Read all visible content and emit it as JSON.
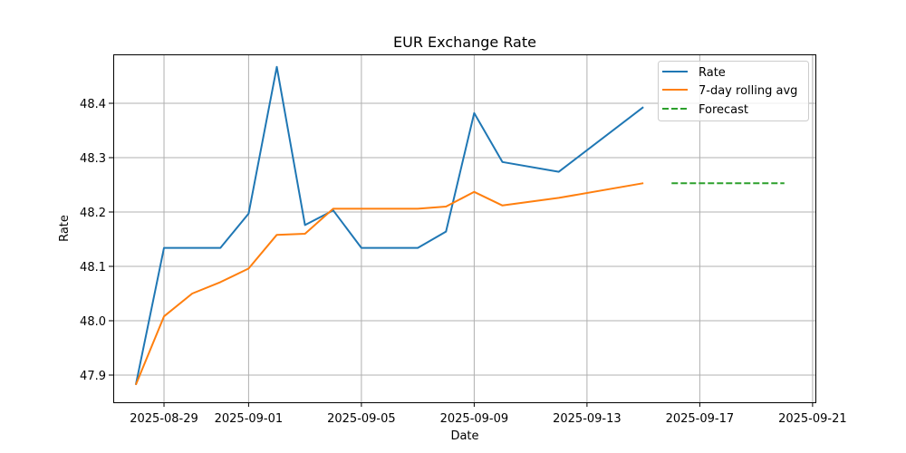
{
  "chart_data": {
    "type": "line",
    "title": "EUR Exchange Rate",
    "xlabel": "Date",
    "ylabel": "Rate",
    "x_axis_type": "date",
    "xlim": [
      "2025-08-27",
      "2025-09-21"
    ],
    "ylim": [
      47.85,
      48.49
    ],
    "x_ticks": [
      "2025-08-29",
      "2025-09-01",
      "2025-09-05",
      "2025-09-09",
      "2025-09-13",
      "2025-09-17",
      "2025-09-21"
    ],
    "y_ticks": [
      47.9,
      48.0,
      48.1,
      48.2,
      48.3,
      48.4
    ],
    "grid": true,
    "legend_position": "top-right",
    "series": [
      {
        "name": "Rate",
        "color": "#1f77b4",
        "style": "solid",
        "points": [
          {
            "x": "2025-08-28",
            "y": 47.882
          },
          {
            "x": "2025-08-29",
            "y": 48.134
          },
          {
            "x": "2025-08-30",
            "y": 48.134
          },
          {
            "x": "2025-08-31",
            "y": 48.134
          },
          {
            "x": "2025-09-01",
            "y": 48.197
          },
          {
            "x": "2025-09-02",
            "y": 48.467
          },
          {
            "x": "2025-09-03",
            "y": 48.176
          },
          {
            "x": "2025-09-04",
            "y": 48.203
          },
          {
            "x": "2025-09-05",
            "y": 48.134
          },
          {
            "x": "2025-09-06",
            "y": 48.134
          },
          {
            "x": "2025-09-07",
            "y": 48.134
          },
          {
            "x": "2025-09-08",
            "y": 48.164
          },
          {
            "x": "2025-09-09",
            "y": 48.382
          },
          {
            "x": "2025-09-10",
            "y": 48.292
          },
          {
            "x": "2025-09-12",
            "y": 48.274
          },
          {
            "x": "2025-09-15",
            "y": 48.393
          }
        ]
      },
      {
        "name": "7-day rolling avg",
        "color": "#ff7f0e",
        "style": "solid",
        "points": [
          {
            "x": "2025-08-28",
            "y": 47.882
          },
          {
            "x": "2025-08-29",
            "y": 48.008
          },
          {
            "x": "2025-08-30",
            "y": 48.05
          },
          {
            "x": "2025-08-31",
            "y": 48.071
          },
          {
            "x": "2025-09-01",
            "y": 48.096
          },
          {
            "x": "2025-09-02",
            "y": 48.158
          },
          {
            "x": "2025-09-03",
            "y": 48.16
          },
          {
            "x": "2025-09-04",
            "y": 48.206
          },
          {
            "x": "2025-09-05",
            "y": 48.206
          },
          {
            "x": "2025-09-06",
            "y": 48.206
          },
          {
            "x": "2025-09-07",
            "y": 48.206
          },
          {
            "x": "2025-09-08",
            "y": 48.21
          },
          {
            "x": "2025-09-09",
            "y": 48.237
          },
          {
            "x": "2025-09-10",
            "y": 48.212
          },
          {
            "x": "2025-09-12",
            "y": 48.226
          },
          {
            "x": "2025-09-15",
            "y": 48.253
          }
        ]
      },
      {
        "name": "Forecast",
        "color": "#2ca02c",
        "style": "dashed",
        "points": [
          {
            "x": "2025-09-16",
            "y": 48.253
          },
          {
            "x": "2025-09-20",
            "y": 48.253
          }
        ]
      }
    ]
  }
}
